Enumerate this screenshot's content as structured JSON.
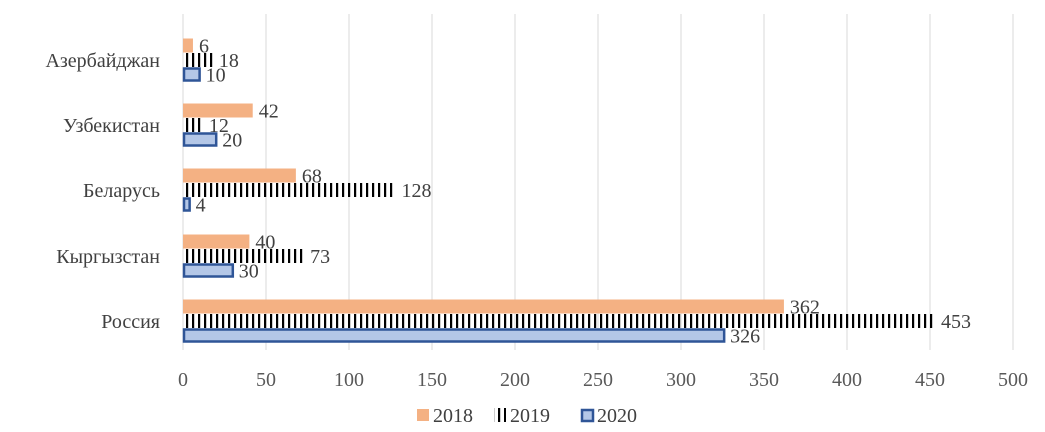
{
  "chart_data": {
    "type": "bar",
    "orientation": "horizontal",
    "categories": [
      "Россия",
      "Кыргызстан",
      "Беларусь",
      "Узбекистан",
      "Азербайджан"
    ],
    "series": [
      {
        "name": "2018",
        "values": [
          362,
          40,
          68,
          42,
          6
        ],
        "color": "#f4b183",
        "pattern": "solid"
      },
      {
        "name": "2019",
        "values": [
          453,
          73,
          128,
          12,
          18
        ],
        "color": "#000000",
        "pattern": "vertical-stripes"
      },
      {
        "name": "2020",
        "values": [
          326,
          30,
          4,
          20,
          10
        ],
        "color": "#b4c7e7",
        "border": "#2f5597",
        "pattern": "solid-outlined"
      }
    ],
    "xlim": [
      0,
      500
    ],
    "ticks": [
      "0",
      "50",
      "100",
      "150",
      "200",
      "250",
      "300",
      "350",
      "400",
      "450",
      "500"
    ],
    "grid": true,
    "legend_position": "bottom",
    "title": "",
    "xlabel": "",
    "ylabel": ""
  }
}
